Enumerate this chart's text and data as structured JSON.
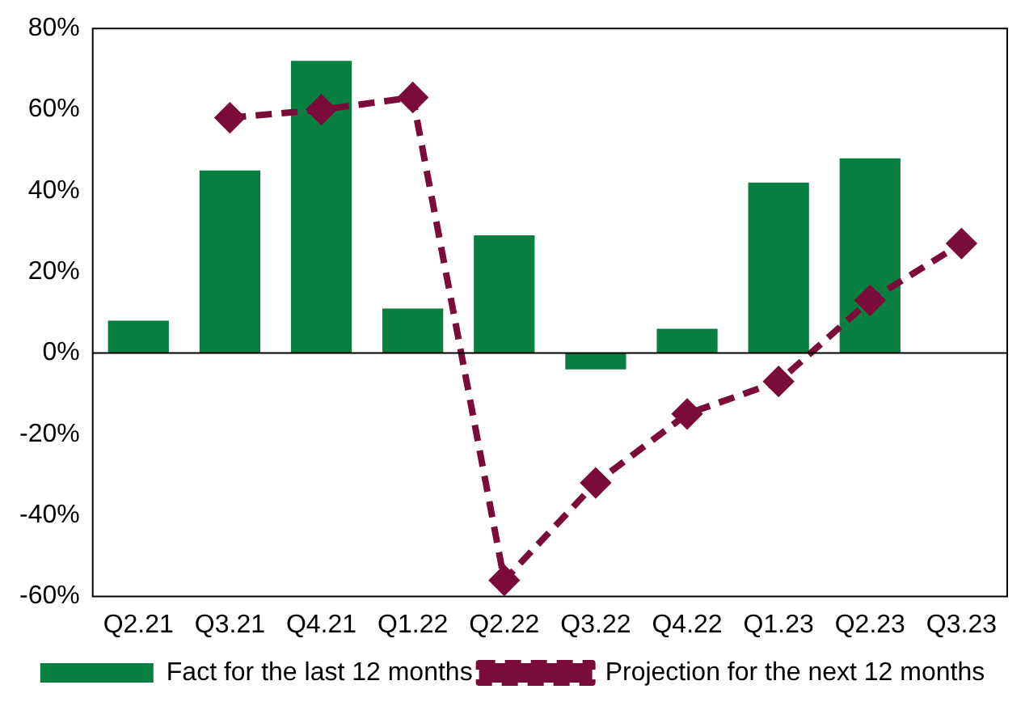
{
  "chart_data": {
    "type": "bar",
    "categories": [
      "Q2.21",
      "Q3.21",
      "Q4.21",
      "Q1.22",
      "Q2.22",
      "Q3.22",
      "Q4.22",
      "Q1.23",
      "Q2.23",
      "Q3.23"
    ],
    "series": [
      {
        "name": "Fact for the last 12 months",
        "color": "#067f40",
        "values": [
          8,
          45,
          72,
          11,
          29,
          -4,
          6,
          42,
          48,
          null
        ]
      },
      {
        "name": "Projection for the next 12 months",
        "type": "line",
        "color": "#7b0c3a",
        "marker": "diamond",
        "line_style": "dashed",
        "values": [
          null,
          58,
          60,
          63,
          -56,
          -32,
          -15,
          -7,
          13,
          27
        ]
      }
    ],
    "ylim": [
      -60,
      80
    ],
    "yticks": [
      {
        "value": -60,
        "label": "-60%"
      },
      {
        "value": -40,
        "label": "-40%"
      },
      {
        "value": -20,
        "label": "-20%"
      },
      {
        "value": 0,
        "label": "0%"
      },
      {
        "value": 20,
        "label": "20%"
      },
      {
        "value": 40,
        "label": "40%"
      },
      {
        "value": 60,
        "label": "60%"
      },
      {
        "value": 80,
        "label": "80%"
      }
    ],
    "ref_lines": [
      {
        "axis": "y",
        "value": 0,
        "color": "#000000"
      }
    ],
    "legend": "bottom"
  }
}
